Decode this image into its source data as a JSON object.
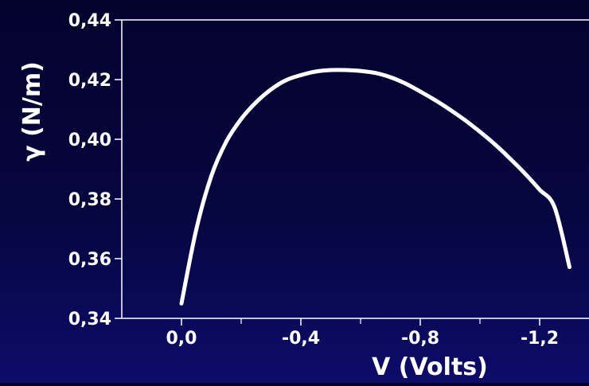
{
  "chart_data": {
    "type": "line",
    "title": "",
    "xlabel": "V (Volts)",
    "ylabel": "γ (N/m)",
    "xlim": [
      0.2,
      -1.4
    ],
    "ylim": [
      0.34,
      0.44
    ],
    "x_ticks": [
      {
        "value": 0.0,
        "label": "0,0"
      },
      {
        "value": -0.4,
        "label": "-0,4"
      },
      {
        "value": -0.8,
        "label": "-0,8"
      },
      {
        "value": -1.2,
        "label": "-1,2"
      }
    ],
    "x_minor_ticks": [
      -0.2,
      -0.6,
      -1.0
    ],
    "y_ticks": [
      {
        "value": 0.34,
        "label": "0,34"
      },
      {
        "value": 0.36,
        "label": "0,36"
      },
      {
        "value": 0.38,
        "label": "0,38"
      },
      {
        "value": 0.4,
        "label": "0,40"
      },
      {
        "value": 0.42,
        "label": "0,42"
      },
      {
        "value": 0.44,
        "label": "0,44"
      }
    ],
    "grid": false,
    "series": [
      {
        "line_color": "#ffffff",
        "x": [
          0.0,
          -0.05,
          -0.1,
          -0.15,
          -0.2,
          -0.25,
          -0.3,
          -0.35,
          -0.4,
          -0.45,
          -0.5,
          -0.55,
          -0.6,
          -0.65,
          -0.7,
          -0.75,
          -0.8,
          -0.85,
          -0.9,
          -0.95,
          -1.0,
          -1.05,
          -1.1,
          -1.15,
          -1.2,
          -1.25,
          -1.3
        ],
        "y": [
          0.345,
          0.37,
          0.3877,
          0.3992,
          0.4068,
          0.4124,
          0.4167,
          0.4198,
          0.4215,
          0.4227,
          0.4232,
          0.4232,
          0.4229,
          0.4222,
          0.4208,
          0.4187,
          0.416,
          0.4131,
          0.4099,
          0.4064,
          0.4025,
          0.3983,
          0.3936,
          0.3886,
          0.3831,
          0.3772,
          0.3572
        ]
      }
    ]
  }
}
